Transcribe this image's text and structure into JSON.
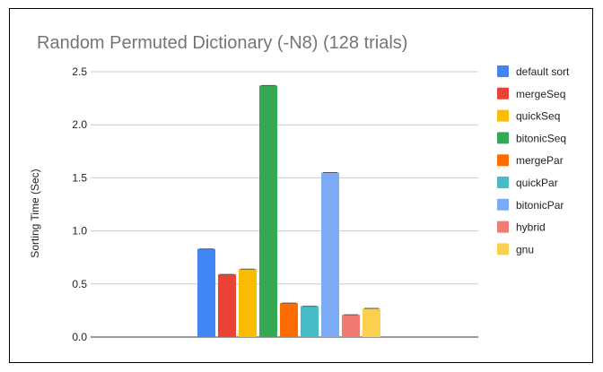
{
  "chart_data": {
    "type": "bar",
    "title": "Random Permuted Dictionary (-N8) (128 trials)",
    "xlabel": "",
    "ylabel": "Sorting Time (Sec)",
    "ylim": [
      0,
      2.5
    ],
    "yticks": [
      "0.0",
      "0.5",
      "1.0",
      "1.5",
      "2.0",
      "2.5"
    ],
    "grid": true,
    "legend_position": "right",
    "series": [
      {
        "name": "default sort",
        "value": 0.83,
        "color": "#4285f4"
      },
      {
        "name": "mergeSeq",
        "value": 0.59,
        "color": "#ea4335"
      },
      {
        "name": "quickSeq",
        "value": 0.64,
        "color": "#fbbc04"
      },
      {
        "name": "bitonicSeq",
        "value": 2.37,
        "color": "#34a853"
      },
      {
        "name": "mergePar",
        "value": 0.32,
        "color": "#ff6d01"
      },
      {
        "name": "quickPar",
        "value": 0.29,
        "color": "#46bdc6"
      },
      {
        "name": "bitonicPar",
        "value": 1.55,
        "color": "#7baaf7"
      },
      {
        "name": "hybrid",
        "value": 0.21,
        "color": "#f07b72"
      },
      {
        "name": "gnu",
        "value": 0.27,
        "color": "#fcd04f"
      }
    ]
  }
}
